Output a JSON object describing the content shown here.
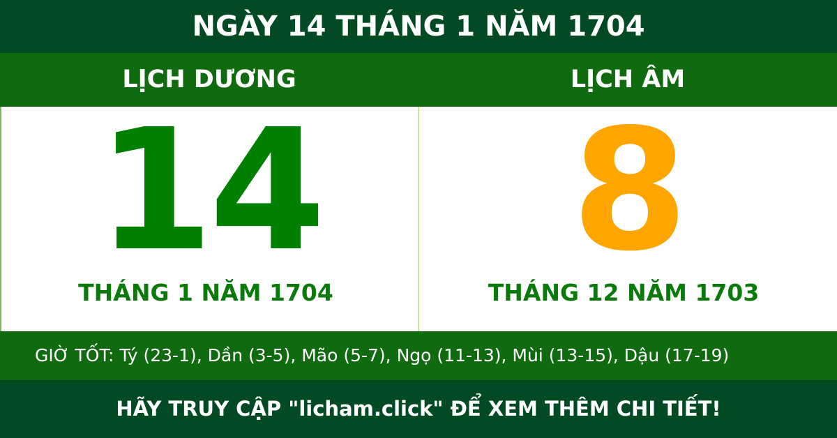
{
  "header": {
    "title": "NGÀY 14 THÁNG 1 NĂM 1704"
  },
  "solar": {
    "label": "LỊCH DƯƠNG",
    "day": "14",
    "month_year": "THÁNG 1 NĂM 1704"
  },
  "lunar": {
    "label": "LỊCH ÂM",
    "day": "8",
    "month_year": "THÁNG 12 NĂM 1703"
  },
  "good_hours": "GIỜ TỐT: Tý (23-1), Dần (3-5), Mão (5-7), Ngọ (11-13), Mùi (13-15), Dậu (17-19)",
  "footer": {
    "text": "HÃY TRUY CẬP \"licham.click\" ĐỂ XEM THÊM CHI TIẾT!"
  },
  "colors": {
    "dark_green": "#024a23",
    "green": "#106b10",
    "solar_day": "#008000",
    "lunar_day": "#ffa500"
  }
}
